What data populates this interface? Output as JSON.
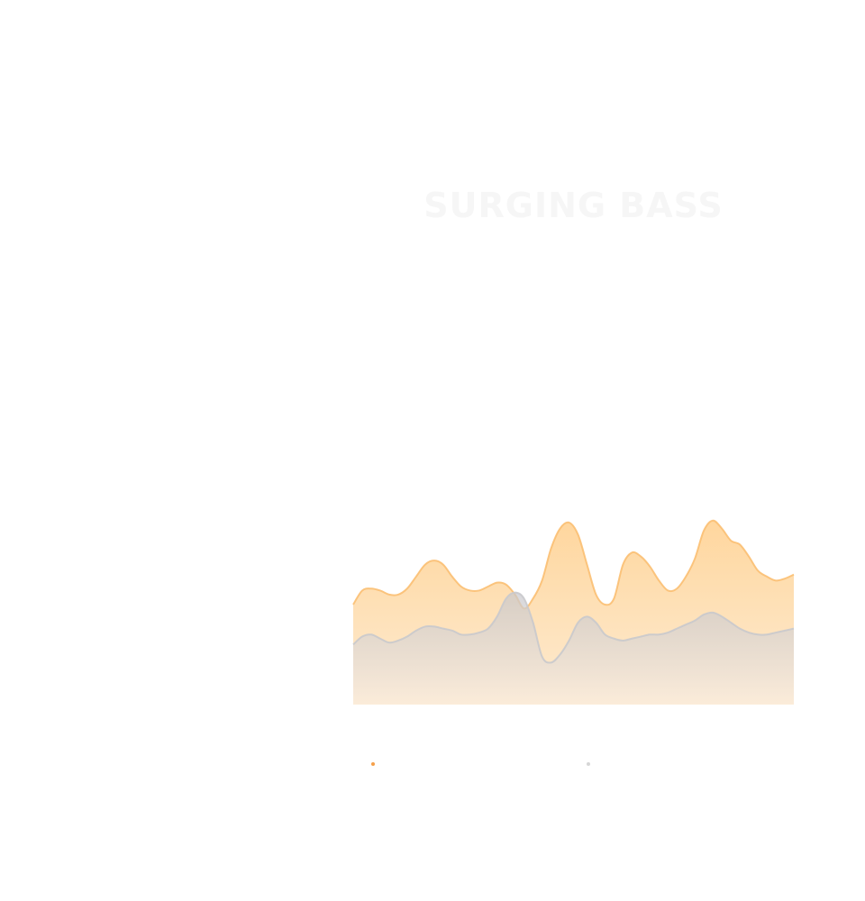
{
  "chart_data": {
    "type": "area",
    "title": "SURGING BASS",
    "xlabel": "",
    "ylabel": "",
    "stacked": false,
    "smooth": true,
    "grid": false,
    "legend_position": "bottom",
    "ylim": [
      0,
      100
    ],
    "x": [
      0,
      1,
      2,
      3,
      4,
      5,
      6,
      7,
      8,
      9,
      10,
      11,
      12,
      13,
      14,
      15,
      16,
      17,
      18,
      19,
      20,
      21,
      22,
      23,
      24,
      25,
      26,
      27,
      28,
      29,
      30,
      31,
      32,
      33,
      34,
      35,
      36,
      37,
      38,
      39,
      40,
      41,
      42,
      43,
      44,
      45,
      46,
      47,
      48,
      49
    ],
    "series": [
      {
        "name": "",
        "color": "#fbbf72",
        "values": [
          50,
          57,
          58,
          57,
          55,
          55,
          58,
          64,
          70,
          72,
          70,
          64,
          59,
          57,
          57,
          59,
          61,
          60,
          55,
          48,
          53,
          62,
          78,
          88,
          91,
          85,
          70,
          55,
          50,
          53,
          70,
          76,
          74,
          69,
          62,
          57,
          58,
          64,
          73,
          87,
          92,
          88,
          82,
          80,
          74,
          67,
          64,
          62,
          63,
          65
        ]
      },
      {
        "name": "",
        "color": "#c9c9cc",
        "values": [
          30,
          34,
          35,
          33,
          31,
          32,
          34,
          37,
          39,
          39,
          38,
          37,
          35,
          35,
          36,
          38,
          44,
          53,
          56,
          53,
          41,
          24,
          21,
          25,
          32,
          41,
          44,
          41,
          35,
          33,
          32,
          33,
          34,
          35,
          35,
          36,
          38,
          40,
          42,
          45,
          46,
          44,
          41,
          38,
          36,
          35,
          35,
          36,
          37,
          38
        ]
      }
    ]
  },
  "palette": {
    "accent": "#fbbf72",
    "secondary": "#c9c9cc",
    "title_color": "#f6f6f6",
    "background": "#ffffff"
  }
}
